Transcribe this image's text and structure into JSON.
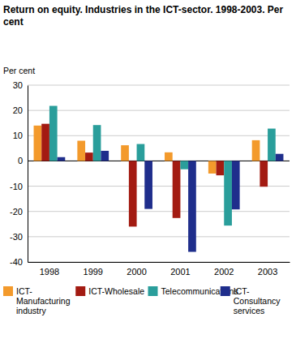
{
  "chart_data": {
    "type": "bar",
    "title": "Return on equity. Industries in the ICT-sector. 1998-2003. Per cent",
    "y_label": "Per cent",
    "categories": [
      "1998",
      "1999",
      "2000",
      "2001",
      "2002",
      "2003"
    ],
    "series": [
      {
        "name": "ICT-Manufacturing industry",
        "color": "#f39a2c",
        "values": [
          14,
          8,
          6.2,
          3.4,
          -5,
          8.2
        ]
      },
      {
        "name": "ICT-Wholesale",
        "color": "#a31b12",
        "values": [
          14.7,
          3.3,
          -26,
          -22.6,
          -5.7,
          -10.2
        ]
      },
      {
        "name": "Telecommunications",
        "color": "#2a9e9b",
        "values": [
          21.8,
          14.2,
          6.7,
          -3.3,
          -25.6,
          12.8
        ]
      },
      {
        "name": "ICT-Consultancy services",
        "color": "#1f2e8c",
        "values": [
          1.5,
          4,
          -19,
          -36,
          -19.2,
          2.8
        ]
      }
    ],
    "ylim": [
      -40,
      30
    ],
    "yticks": [
      -40,
      -30,
      -20,
      -10,
      0,
      10,
      20,
      30
    ],
    "grid": true,
    "legend": "bottom"
  }
}
